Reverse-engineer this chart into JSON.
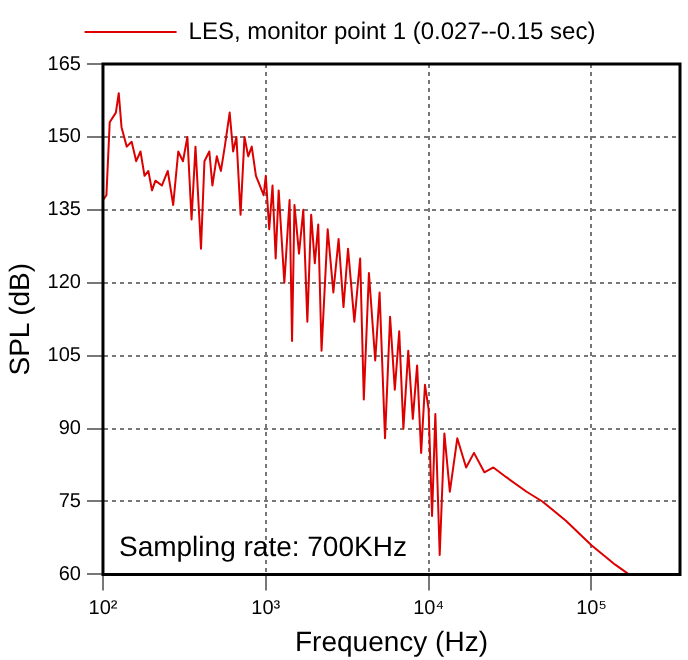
{
  "chart_data": {
    "type": "line",
    "xlabel": "Frequency (Hz)",
    "ylabel": "SPL (dB)",
    "log": "x",
    "grid": true,
    "legend": "top",
    "marker": "none",
    "line_style": "solid",
    "xlim": [
      100,
      350000
    ],
    "xticks": [
      {
        "value": 100,
        "label": "10²"
      },
      {
        "value": 1000,
        "label": "10³"
      },
      {
        "value": 10000,
        "label": "10⁴"
      },
      {
        "value": 100000,
        "label": "10⁵"
      }
    ],
    "ylim": [
      60,
      165
    ],
    "yticks": [
      60,
      75,
      90,
      105,
      120,
      135,
      150,
      165
    ],
    "annotations": [
      "Sampling rate: 700KHz"
    ],
    "series": [
      {
        "name": "LES, monitor point 1 (0.027--0.15 sec)",
        "color": "#dd0000",
        "x": [
          100,
          105,
          110,
          120,
          125,
          130,
          140,
          150,
          160,
          170,
          180,
          190,
          200,
          210,
          230,
          250,
          270,
          290,
          310,
          330,
          350,
          370,
          400,
          420,
          450,
          470,
          500,
          530,
          560,
          600,
          630,
          660,
          700,
          740,
          780,
          820,
          870,
          920,
          970,
          1000,
          1050,
          1100,
          1150,
          1200,
          1300,
          1400,
          1450,
          1500,
          1600,
          1700,
          1800,
          1900,
          2000,
          2100,
          2200,
          2400,
          2600,
          2800,
          3000,
          3200,
          3500,
          3800,
          4000,
          4300,
          4700,
          5000,
          5400,
          5800,
          6200,
          6600,
          7000,
          7500,
          8000,
          8500,
          9000,
          9500,
          10000,
          10500,
          11000,
          11700,
          12500,
          13500,
          15000,
          17000,
          19000,
          22000,
          25000,
          30000,
          40000,
          50000,
          70000,
          100000,
          140000,
          170000
        ],
        "values": [
          137,
          138,
          153,
          155,
          159,
          152,
          148,
          149,
          145,
          147,
          142,
          143,
          139,
          141,
          140,
          143,
          136,
          147,
          145,
          150,
          133,
          148,
          127,
          145,
          147,
          140,
          146,
          143,
          148,
          155,
          147,
          150,
          134,
          150,
          146,
          148,
          142,
          140,
          138,
          142,
          131,
          140,
          125,
          139,
          120,
          137,
          108,
          136,
          126,
          135,
          112,
          134,
          124,
          132,
          106,
          131,
          118,
          129,
          115,
          127,
          112,
          125,
          96,
          122,
          104,
          118,
          88,
          113,
          98,
          110,
          90,
          106,
          92,
          103,
          85,
          99,
          94,
          72,
          93,
          64,
          89,
          77,
          88,
          82,
          85,
          81,
          82,
          80,
          77,
          75,
          71,
          66,
          62,
          60
        ]
      }
    ]
  }
}
